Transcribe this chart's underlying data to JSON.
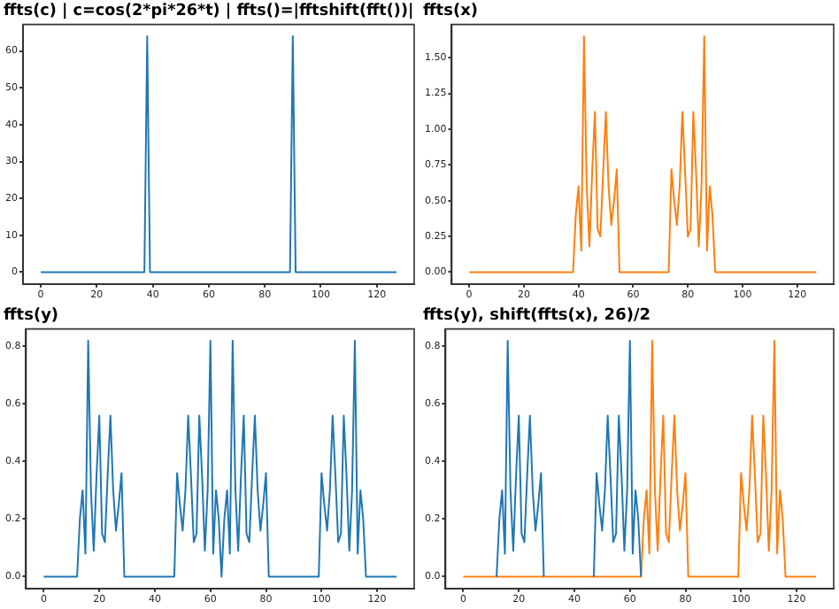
{
  "chart_data": [
    {
      "type": "line",
      "title": "ffts(c) | c=cos(2*pi*26*t) | ffts()=|fftshift(fft())|",
      "xlim": [
        -6.35,
        133.35
      ],
      "xticks": [
        0,
        20,
        40,
        60,
        80,
        100,
        120
      ],
      "ylim": [
        -3.2,
        67.2
      ],
      "yticks": [
        0,
        10,
        20,
        30,
        40,
        50,
        60
      ],
      "grid": false,
      "legend": false,
      "marker": "none",
      "line_style": "solid",
      "x": [
        0,
        1,
        2,
        3,
        4,
        5,
        6,
        7,
        8,
        9,
        10,
        11,
        12,
        13,
        14,
        15,
        16,
        17,
        18,
        19,
        20,
        21,
        22,
        23,
        24,
        25,
        26,
        27,
        28,
        29,
        30,
        31,
        32,
        33,
        34,
        35,
        36,
        37,
        38,
        39,
        40,
        41,
        42,
        43,
        44,
        45,
        46,
        47,
        48,
        49,
        50,
        51,
        52,
        53,
        54,
        55,
        56,
        57,
        58,
        59,
        60,
        61,
        62,
        63,
        64,
        65,
        66,
        67,
        68,
        69,
        70,
        71,
        72,
        73,
        74,
        75,
        76,
        77,
        78,
        79,
        80,
        81,
        82,
        83,
        84,
        85,
        86,
        87,
        88,
        89,
        90,
        91,
        92,
        93,
        94,
        95,
        96,
        97,
        98,
        99,
        100,
        101,
        102,
        103,
        104,
        105,
        106,
        107,
        108,
        109,
        110,
        111,
        112,
        113,
        114,
        115,
        116,
        117,
        118,
        119,
        120,
        121,
        122,
        123,
        124,
        125,
        126,
        127
      ],
      "series": [
        {
          "color": "#1f77b4",
          "values": [
            0,
            0,
            0,
            0,
            0,
            0,
            0,
            0,
            0,
            0,
            0,
            0,
            0,
            0,
            0,
            0,
            0,
            0,
            0,
            0,
            0,
            0,
            0,
            0,
            0,
            0,
            0,
            0,
            0,
            0,
            0,
            0,
            0,
            0,
            0,
            0,
            0,
            0,
            64,
            0,
            0,
            0,
            0,
            0,
            0,
            0,
            0,
            0,
            0,
            0,
            0,
            0,
            0,
            0,
            0,
            0,
            0,
            0,
            0,
            0,
            0,
            0,
            0,
            0,
            0,
            0,
            0,
            0,
            0,
            0,
            0,
            0,
            0,
            0,
            0,
            0,
            0,
            0,
            0,
            0,
            0,
            0,
            0,
            0,
            0,
            0,
            0,
            0,
            0,
            0,
            64,
            0,
            0,
            0,
            0,
            0,
            0,
            0,
            0,
            0,
            0,
            0,
            0,
            0,
            0,
            0,
            0,
            0,
            0,
            0,
            0,
            0,
            0,
            0,
            0,
            0,
            0,
            0,
            0,
            0,
            0,
            0,
            0,
            0,
            0,
            0,
            0,
            0
          ]
        }
      ]
    },
    {
      "type": "line",
      "title": "ffts(x)",
      "xlim": [
        -6.35,
        133.35
      ],
      "xticks": [
        0,
        20,
        40,
        60,
        80,
        100,
        120
      ],
      "ylim": [
        -0.0825,
        1.7325
      ],
      "yticks": [
        {
          "value": 0,
          "label": "0.00"
        },
        {
          "value": 0.25,
          "label": "0.25"
        },
        {
          "value": 0.5,
          "label": "0.50"
        },
        {
          "value": 0.75,
          "label": "0.75"
        },
        {
          "value": 1,
          "label": "1.00"
        },
        {
          "value": 1.25,
          "label": "1.25"
        },
        {
          "value": 1.5,
          "label": "1.50"
        }
      ],
      "grid": false,
      "legend": false,
      "marker": "none",
      "line_style": "solid",
      "x": [
        0,
        1,
        2,
        3,
        4,
        5,
        6,
        7,
        8,
        9,
        10,
        11,
        12,
        13,
        14,
        15,
        16,
        17,
        18,
        19,
        20,
        21,
        22,
        23,
        24,
        25,
        26,
        27,
        28,
        29,
        30,
        31,
        32,
        33,
        34,
        35,
        36,
        37,
        38,
        39,
        40,
        41,
        42,
        43,
        44,
        45,
        46,
        47,
        48,
        49,
        50,
        51,
        52,
        53,
        54,
        55,
        56,
        57,
        58,
        59,
        60,
        61,
        62,
        63,
        64,
        65,
        66,
        67,
        68,
        69,
        70,
        71,
        72,
        73,
        74,
        75,
        76,
        77,
        78,
        79,
        80,
        81,
        82,
        83,
        84,
        85,
        86,
        87,
        88,
        89,
        90,
        91,
        92,
        93,
        94,
        95,
        96,
        97,
        98,
        99,
        100,
        101,
        102,
        103,
        104,
        105,
        106,
        107,
        108,
        109,
        110,
        111,
        112,
        113,
        114,
        115,
        116,
        117,
        118,
        119,
        120,
        121,
        122,
        123,
        124,
        125,
        126,
        127
      ],
      "series": [
        {
          "color": "#ff7f0e",
          "values": [
            0,
            0,
            0,
            0,
            0,
            0,
            0,
            0,
            0,
            0,
            0,
            0,
            0,
            0,
            0,
            0,
            0,
            0,
            0,
            0,
            0,
            0,
            0,
            0,
            0,
            0,
            0,
            0,
            0,
            0,
            0,
            0,
            0,
            0,
            0,
            0,
            0,
            0,
            0,
            0.4,
            0.6,
            0.15,
            1.65,
            0.6,
            0.18,
            0.7,
            1.12,
            0.3,
            0.25,
            0.7,
            1.12,
            0.6,
            0.33,
            0.5,
            0.72,
            0,
            0,
            0,
            0,
            0,
            0,
            0,
            0,
            0,
            0,
            0,
            0,
            0,
            0,
            0,
            0,
            0,
            0,
            0,
            0.72,
            0.5,
            0.33,
            0.6,
            1.12,
            0.7,
            0.25,
            0.3,
            1.12,
            0.7,
            0.18,
            0.6,
            1.65,
            0.15,
            0.6,
            0.4,
            0,
            0,
            0,
            0,
            0,
            0,
            0,
            0,
            0,
            0,
            0,
            0,
            0,
            0,
            0,
            0,
            0,
            0,
            0,
            0,
            0,
            0,
            0,
            0,
            0,
            0,
            0,
            0,
            0,
            0,
            0,
            0,
            0,
            0,
            0,
            0,
            0,
            0
          ]
        }
      ]
    },
    {
      "type": "line",
      "title": "ffts(y)",
      "xlim": [
        -6.35,
        133.35
      ],
      "xticks": [
        0,
        20,
        40,
        60,
        80,
        100,
        120
      ],
      "ylim": [
        -0.041,
        0.861
      ],
      "yticks": [
        {
          "value": 0,
          "label": "0.0"
        },
        0.2,
        0.4,
        0.6,
        0.8
      ],
      "grid": false,
      "legend": false,
      "marker": "none",
      "line_style": "solid",
      "x": [
        0,
        1,
        2,
        3,
        4,
        5,
        6,
        7,
        8,
        9,
        10,
        11,
        12,
        13,
        14,
        15,
        16,
        17,
        18,
        19,
        20,
        21,
        22,
        23,
        24,
        25,
        26,
        27,
        28,
        29,
        30,
        31,
        32,
        33,
        34,
        35,
        36,
        37,
        38,
        39,
        40,
        41,
        42,
        43,
        44,
        45,
        46,
        47,
        48,
        49,
        50,
        51,
        52,
        53,
        54,
        55,
        56,
        57,
        58,
        59,
        60,
        61,
        62,
        63,
        64,
        65,
        66,
        67,
        68,
        69,
        70,
        71,
        72,
        73,
        74,
        75,
        76,
        77,
        78,
        79,
        80,
        81,
        82,
        83,
        84,
        85,
        86,
        87,
        88,
        89,
        90,
        91,
        92,
        93,
        94,
        95,
        96,
        97,
        98,
        99,
        100,
        101,
        102,
        103,
        104,
        105,
        106,
        107,
        108,
        109,
        110,
        111,
        112,
        113,
        114,
        115,
        116,
        117,
        118,
        119,
        120,
        121,
        122,
        123,
        124,
        125,
        126,
        127
      ],
      "series": [
        {
          "color": "#1f77b4",
          "values": [
            0,
            0,
            0,
            0,
            0,
            0,
            0,
            0,
            0,
            0,
            0,
            0,
            0,
            0.2,
            0.3,
            0.08,
            0.82,
            0.3,
            0.09,
            0.35,
            0.56,
            0.15,
            0.12,
            0.35,
            0.56,
            0.3,
            0.16,
            0.25,
            0.36,
            0,
            0,
            0,
            0,
            0,
            0,
            0,
            0,
            0,
            0,
            0,
            0,
            0,
            0,
            0,
            0,
            0,
            0,
            0,
            0.36,
            0.25,
            0.16,
            0.3,
            0.56,
            0.35,
            0.12,
            0.15,
            0.56,
            0.35,
            0.09,
            0.3,
            0.82,
            0.08,
            0.3,
            0.2,
            0,
            0.2,
            0.3,
            0.08,
            0.82,
            0.3,
            0.09,
            0.35,
            0.56,
            0.15,
            0.12,
            0.35,
            0.56,
            0.3,
            0.16,
            0.25,
            0.36,
            0,
            0,
            0,
            0,
            0,
            0,
            0,
            0,
            0,
            0,
            0,
            0,
            0,
            0,
            0,
            0,
            0,
            0,
            0,
            0.36,
            0.25,
            0.16,
            0.3,
            0.56,
            0.35,
            0.12,
            0.15,
            0.56,
            0.35,
            0.09,
            0.3,
            0.82,
            0.08,
            0.3,
            0.2,
            0,
            0,
            0,
            0,
            0,
            0,
            0,
            0,
            0,
            0,
            0,
            0
          ]
        }
      ]
    },
    {
      "type": "line",
      "title": "ffts(y), shift(ffts(x), 26)/2",
      "xlim": [
        -6.35,
        133.35
      ],
      "xticks": [
        0,
        20,
        40,
        60,
        80,
        100,
        120
      ],
      "ylim": [
        -0.041,
        0.861
      ],
      "yticks": [
        {
          "value": 0,
          "label": "0.0"
        },
        0.2,
        0.4,
        0.6,
        0.8
      ],
      "grid": false,
      "legend": false,
      "marker": "none",
      "line_style": "solid",
      "x": [
        0,
        1,
        2,
        3,
        4,
        5,
        6,
        7,
        8,
        9,
        10,
        11,
        12,
        13,
        14,
        15,
        16,
        17,
        18,
        19,
        20,
        21,
        22,
        23,
        24,
        25,
        26,
        27,
        28,
        29,
        30,
        31,
        32,
        33,
        34,
        35,
        36,
        37,
        38,
        39,
        40,
        41,
        42,
        43,
        44,
        45,
        46,
        47,
        48,
        49,
        50,
        51,
        52,
        53,
        54,
        55,
        56,
        57,
        58,
        59,
        60,
        61,
        62,
        63,
        64,
        65,
        66,
        67,
        68,
        69,
        70,
        71,
        72,
        73,
        74,
        75,
        76,
        77,
        78,
        79,
        80,
        81,
        82,
        83,
        84,
        85,
        86,
        87,
        88,
        89,
        90,
        91,
        92,
        93,
        94,
        95,
        96,
        97,
        98,
        99,
        100,
        101,
        102,
        103,
        104,
        105,
        106,
        107,
        108,
        109,
        110,
        111,
        112,
        113,
        114,
        115,
        116,
        117,
        118,
        119,
        120,
        121,
        122,
        123,
        124,
        125,
        126,
        127
      ],
      "series": [
        {
          "color": "#1f77b4",
          "values": [
            null,
            null,
            null,
            null,
            null,
            null,
            null,
            null,
            null,
            null,
            null,
            null,
            0,
            0.2,
            0.3,
            0.08,
            0.82,
            0.3,
            0.09,
            0.35,
            0.56,
            0.15,
            0.12,
            0.35,
            0.56,
            0.3,
            0.16,
            0.25,
            0.36,
            0,
            null,
            null,
            null,
            null,
            null,
            null,
            null,
            null,
            null,
            null,
            null,
            null,
            null,
            null,
            null,
            null,
            null,
            0,
            0.36,
            0.25,
            0.16,
            0.3,
            0.56,
            0.35,
            0.12,
            0.15,
            0.56,
            0.35,
            0.09,
            0.3,
            0.82,
            0.08,
            0.3,
            0.2,
            0,
            null,
            null,
            null,
            null,
            null,
            null,
            null,
            null,
            null,
            null,
            null,
            null,
            null,
            null,
            null,
            null,
            null,
            null,
            null,
            null,
            null,
            null,
            null,
            null,
            null,
            null,
            null,
            null,
            null,
            null,
            null,
            null,
            null,
            null,
            null,
            null,
            null,
            null,
            null,
            null,
            null,
            null,
            null,
            null,
            null,
            null,
            null,
            null,
            null,
            null,
            null,
            null,
            null,
            null,
            null,
            null,
            null,
            null,
            null,
            null,
            null,
            null,
            null
          ]
        },
        {
          "color": "#ff7f0e",
          "values": [
            0,
            0,
            0,
            0,
            0,
            0,
            0,
            0,
            0,
            0,
            0,
            0,
            0,
            0,
            0,
            0,
            0,
            0,
            0,
            0,
            0,
            0,
            0,
            0,
            0,
            0,
            0,
            0,
            0,
            0,
            0,
            0,
            0,
            0,
            0,
            0,
            0,
            0,
            0,
            0,
            0,
            0,
            0,
            0,
            0,
            0,
            0,
            0,
            0,
            0,
            0,
            0,
            0,
            0,
            0,
            0,
            0,
            0,
            0,
            0,
            0,
            0,
            0,
            0,
            0,
            0.2,
            0.3,
            0.08,
            0.82,
            0.3,
            0.09,
            0.35,
            0.56,
            0.15,
            0.12,
            0.35,
            0.56,
            0.3,
            0.16,
            0.25,
            0.36,
            0,
            0,
            0,
            0,
            0,
            0,
            0,
            0,
            0,
            0,
            0,
            0,
            0,
            0,
            0,
            0,
            0,
            0,
            0,
            0.36,
            0.25,
            0.16,
            0.3,
            0.56,
            0.35,
            0.12,
            0.15,
            0.56,
            0.35,
            0.09,
            0.3,
            0.82,
            0.08,
            0.3,
            0.2,
            0,
            0,
            0,
            0,
            0,
            0,
            0,
            0,
            0,
            0,
            0,
            0
          ]
        }
      ]
    }
  ]
}
